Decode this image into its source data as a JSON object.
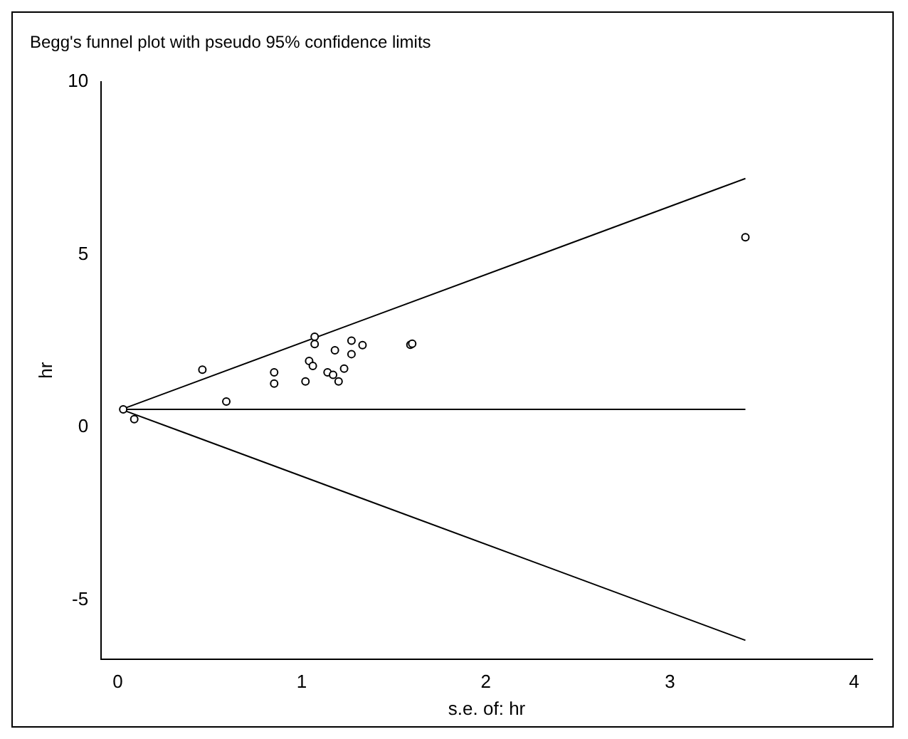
{
  "chart_data": {
    "type": "scatter",
    "title": "Begg's funnel plot with pseudo 95% confidence limits",
    "xlabel": "s.e. of: hr",
    "ylabel": "hr",
    "xlim": [
      -0.09,
      4.1
    ],
    "xticks": [
      0,
      1,
      2,
      3,
      4
    ],
    "ylim": [
      -6.7,
      10
    ],
    "yticks": [
      -5,
      0,
      5,
      10
    ],
    "grid": false,
    "legend": false,
    "series": [
      {
        "color": "#000000",
        "marker": "circle",
        "x": [
          0.03,
          0.09,
          0.46,
          0.59,
          0.85,
          0.85,
          1.02,
          1.04,
          1.06,
          1.07,
          1.07,
          1.14,
          1.17,
          1.2,
          1.18,
          1.23,
          1.27,
          1.27,
          1.33,
          1.59,
          1.6,
          3.41
        ],
        "values": [
          0.52,
          0.24,
          1.67,
          0.75,
          1.59,
          1.27,
          1.33,
          1.92,
          1.78,
          2.62,
          2.41,
          1.59,
          1.52,
          1.33,
          2.23,
          1.7,
          2.51,
          2.12,
          2.38,
          2.39,
          2.42,
          5.5
        ]
      },
      {
        "type": "line",
        "color": "#000000",
        "marker": "none",
        "x": [
          0.02,
          3.41
        ],
        "values": [
          0.52,
          0.52
        ]
      },
      {
        "type": "line",
        "color": "#000000",
        "marker": "none",
        "x": [
          0.02,
          3.41
        ],
        "values": [
          0.52,
          7.2
        ]
      },
      {
        "type": "line",
        "color": "#000000",
        "marker": "none",
        "x": [
          0.02,
          3.41
        ],
        "values": [
          0.52,
          -6.16
        ]
      }
    ]
  }
}
